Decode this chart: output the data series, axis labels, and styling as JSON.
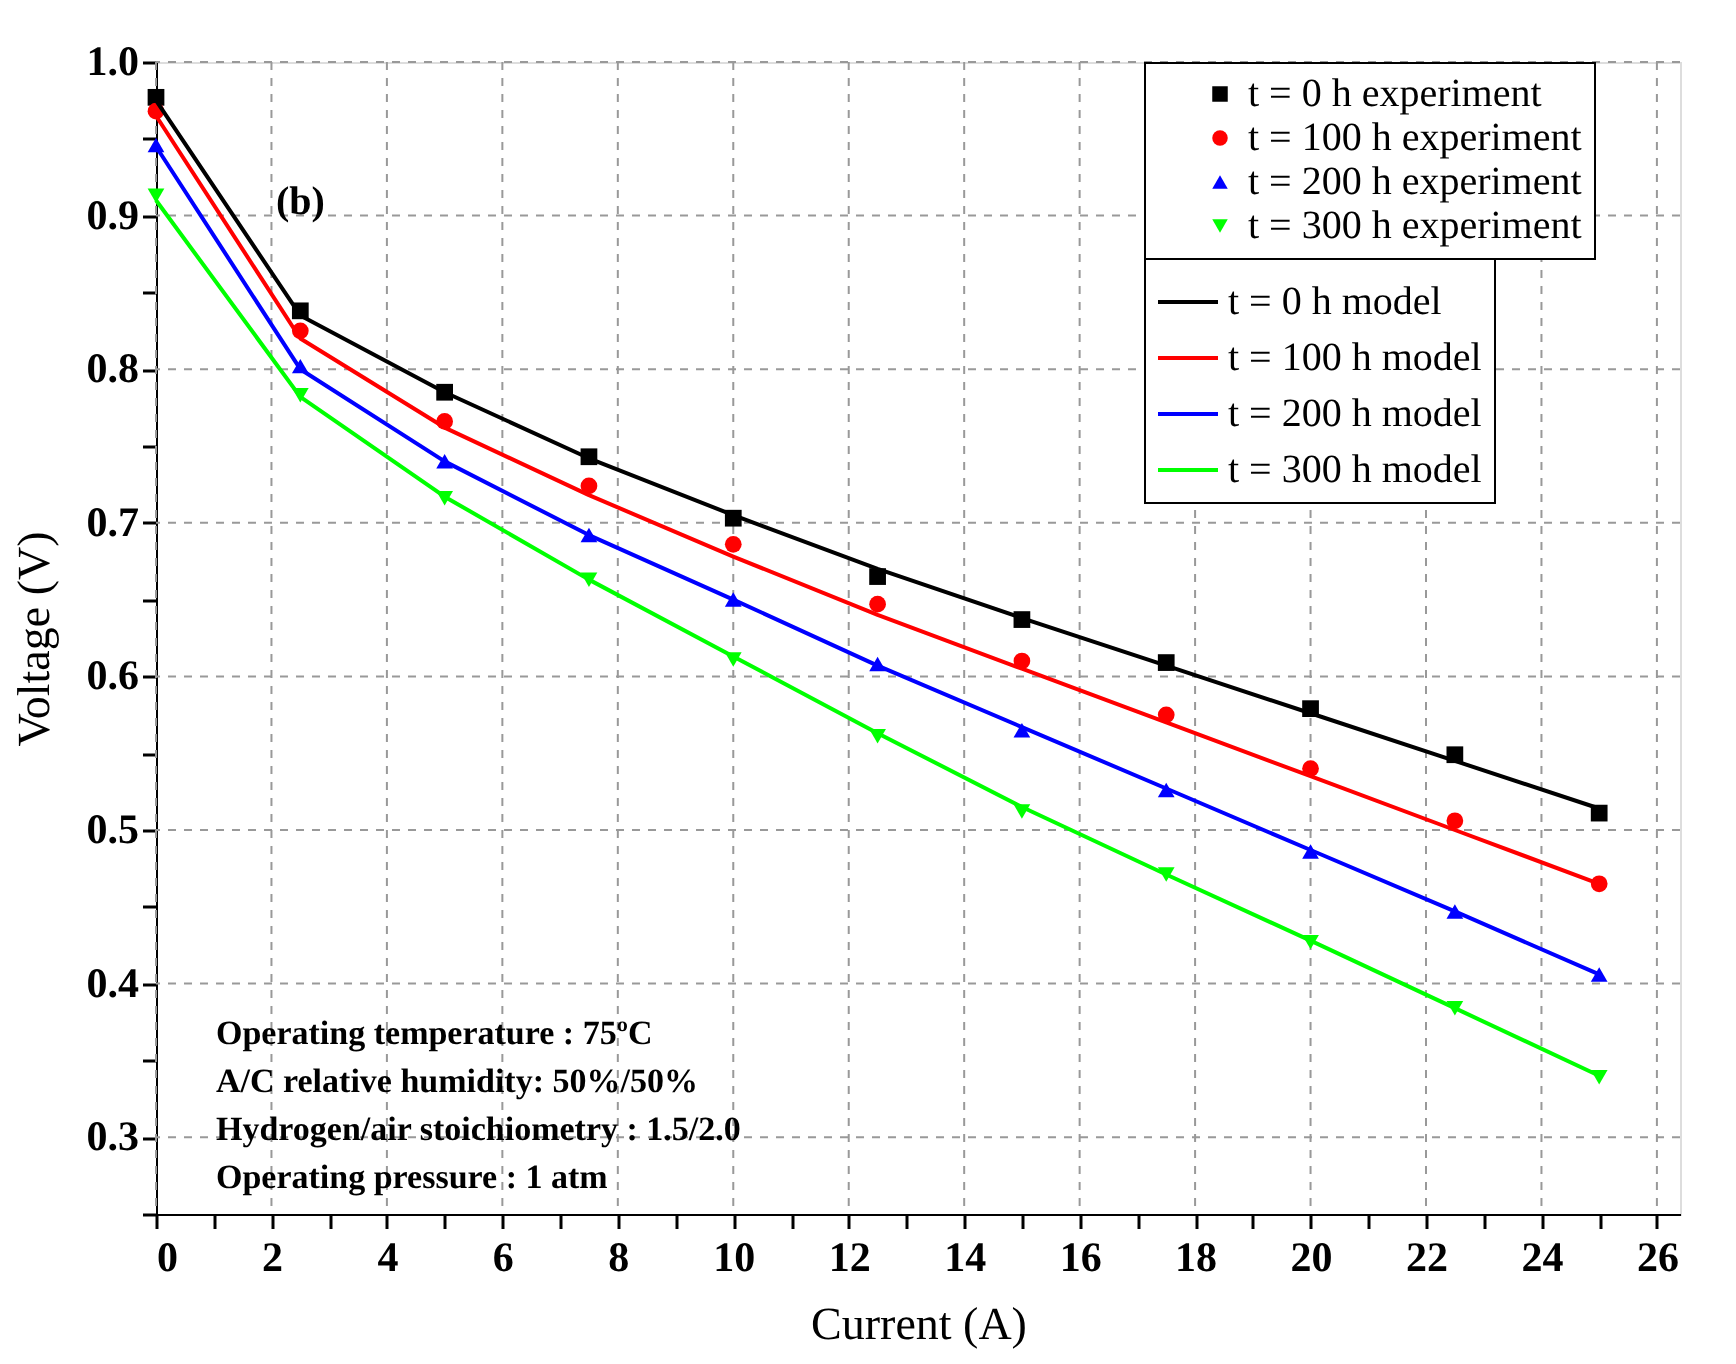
{
  "chart_data": {
    "type": "scatter",
    "xlabel": "Current (A)",
    "ylabel": "Voltage (V)",
    "x": [
      0,
      2.5,
      5,
      7.5,
      10,
      12.5,
      15,
      17.5,
      20,
      22.5,
      25
    ],
    "xlim": [
      0,
      26.4
    ],
    "xticks": [
      0,
      {
        "value": 1,
        "label": null
      },
      2,
      {
        "value": 3,
        "label": null
      },
      4,
      {
        "value": 5,
        "label": null
      },
      6,
      {
        "value": 7,
        "label": null
      },
      8,
      {
        "value": 9,
        "label": null
      },
      10,
      {
        "value": 11,
        "label": null
      },
      12,
      {
        "value": 13,
        "label": null
      },
      14,
      {
        "value": 15,
        "label": null
      },
      16,
      {
        "value": 17,
        "label": null
      },
      18,
      {
        "value": 19,
        "label": null
      },
      20,
      {
        "value": 21,
        "label": null
      },
      22,
      {
        "value": 23,
        "label": null
      },
      24,
      {
        "value": 25,
        "label": null
      },
      26
    ],
    "ylim": [
      0.25,
      1.0
    ],
    "yticks": [
      {
        "value": 0.25,
        "label": null
      },
      0.3,
      {
        "value": 0.35,
        "label": null
      },
      0.4,
      {
        "value": 0.45,
        "label": null
      },
      0.5,
      {
        "value": 0.55,
        "label": null
      },
      0.6,
      {
        "value": 0.65,
        "label": null
      },
      0.7,
      {
        "value": 0.75,
        "label": null
      },
      0.8,
      {
        "value": 0.85,
        "label": null
      },
      0.9,
      {
        "value": 0.95,
        "label": null
      },
      {
        "value": 1.0,
        "label": "1.0"
      }
    ],
    "grid": true,
    "legend": "top right",
    "annotations": [
      "(b)",
      "Operating temperature : 75ºC",
      "A/C relative humidity: 50%/50%",
      "Hydrogen/air stoichiometry : 1.5/2.0",
      "Operating pressure : 1 atm"
    ],
    "series": [
      {
        "name": "t = 0 h experiment",
        "type": "scatter",
        "marker": "square",
        "color": "#000000",
        "values": [
          0.977,
          0.838,
          0.785,
          0.743,
          0.703,
          0.665,
          0.637,
          0.609,
          0.579,
          0.549,
          0.511
        ]
      },
      {
        "name": "t = 100 h experiment",
        "type": "scatter",
        "marker": "circle",
        "color": "#ff0000",
        "values": [
          0.968,
          0.825,
          0.766,
          0.724,
          0.686,
          0.647,
          0.61,
          0.575,
          0.54,
          0.506,
          0.465
        ]
      },
      {
        "name": "t = 200 h experiment",
        "type": "scatter",
        "marker": "triangle",
        "color": "#0000ff",
        "values": [
          0.946,
          0.802,
          0.74,
          0.692,
          0.65,
          0.608,
          0.565,
          0.526,
          0.486,
          0.447,
          0.406
        ]
      },
      {
        "name": "t = 300 h experiment",
        "type": "scatter",
        "marker": "triangle-down",
        "color": "#00ff00",
        "values": [
          0.913,
          0.783,
          0.716,
          0.663,
          0.611,
          0.561,
          0.512,
          0.471,
          0.427,
          0.384,
          0.339
        ]
      },
      {
        "name": "t = 0 h model",
        "type": "line",
        "marker": "none",
        "line_style": "solid",
        "color": "#000000",
        "values": [
          0.975,
          0.835,
          0.785,
          0.742,
          0.705,
          0.67,
          0.638,
          0.607,
          0.576,
          0.545,
          0.514
        ]
      },
      {
        "name": "t = 100 h model",
        "type": "line",
        "marker": "none",
        "line_style": "solid",
        "color": "#ff0000",
        "values": [
          0.965,
          0.82,
          0.762,
          0.718,
          0.678,
          0.64,
          0.605,
          0.57,
          0.535,
          0.5,
          0.465
        ]
      },
      {
        "name": "t = 200 h model",
        "type": "line",
        "marker": "none",
        "line_style": "solid",
        "color": "#0000ff",
        "values": [
          0.945,
          0.8,
          0.74,
          0.692,
          0.65,
          0.607,
          0.567,
          0.527,
          0.487,
          0.447,
          0.406
        ]
      },
      {
        "name": "t = 300 h model",
        "type": "line",
        "marker": "none",
        "line_style": "solid",
        "color": "#00ff00",
        "values": [
          0.91,
          0.782,
          0.717,
          0.663,
          0.613,
          0.563,
          0.515,
          0.471,
          0.428,
          0.384,
          0.34
        ]
      }
    ]
  }
}
